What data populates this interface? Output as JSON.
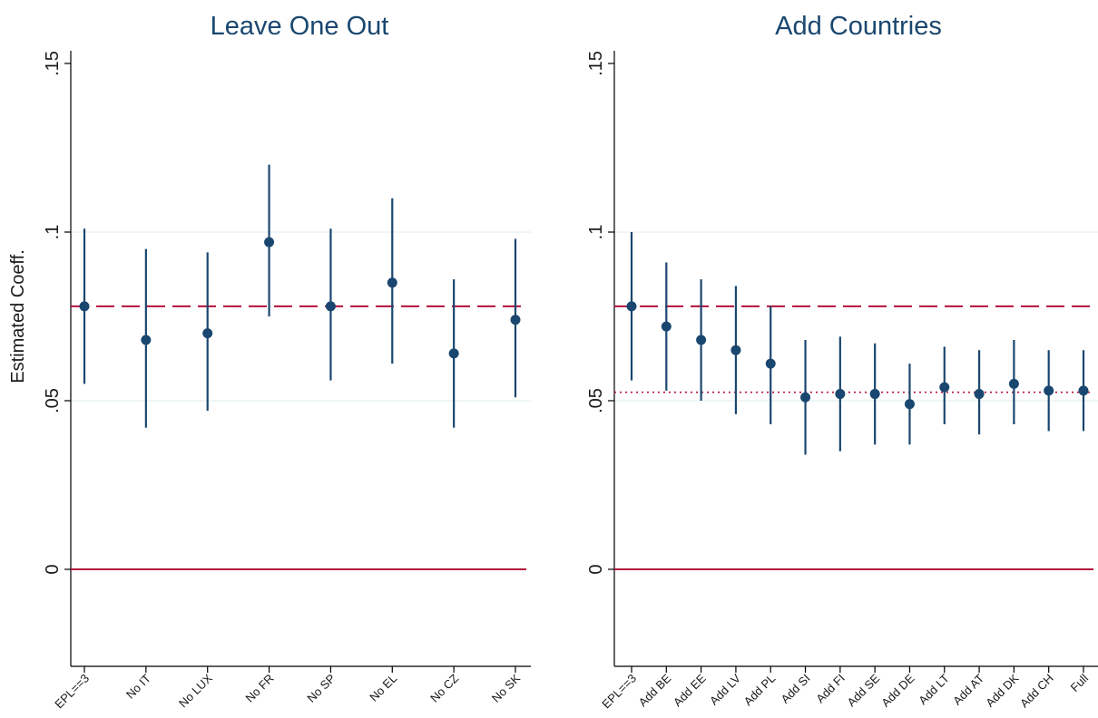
{
  "colors": {
    "point": "#1a476f",
    "ci": "#1a476f",
    "baseline": "#b4103a",
    "zero": "#b4103a",
    "grid": "#eaf2f3",
    "axis": "#000000",
    "text": "#1a1a1a"
  },
  "chart_data": [
    {
      "type": "scatter",
      "title": "Leave One Out",
      "ylabel": "Estimated Coeff.",
      "ylim": [
        -0.03,
        0.155
      ],
      "yticks": [
        0,
        0.05,
        0.1,
        0.15
      ],
      "ytick_labels": [
        "0",
        ".05",
        ".1",
        ".15"
      ],
      "grid_values": [
        0.05,
        0.1
      ],
      "categories": [
        "EPL==3",
        "No IT",
        "No LUX",
        "No FR",
        "No SP",
        "No EL",
        "No CZ",
        "No SK"
      ],
      "estimates": [
        0.078,
        0.068,
        0.07,
        0.097,
        0.078,
        0.085,
        0.064,
        0.074
      ],
      "ci_lower": [
        0.055,
        0.042,
        0.047,
        0.075,
        0.056,
        0.061,
        0.042,
        0.051
      ],
      "ci_upper": [
        0.101,
        0.095,
        0.094,
        0.12,
        0.101,
        0.11,
        0.086,
        0.098
      ],
      "reference_lines": [
        {
          "value": 0.078,
          "style": "dashed"
        },
        {
          "value": 0,
          "style": "solid"
        }
      ]
    },
    {
      "type": "scatter",
      "title": "Add Countries",
      "ylabel": "",
      "ylim": [
        -0.03,
        0.155
      ],
      "yticks": [
        0,
        0.05,
        0.1,
        0.15
      ],
      "ytick_labels": [
        "0",
        ".05",
        ".1",
        ".15"
      ],
      "grid_values": [
        0.05,
        0.1
      ],
      "categories": [
        "EPL==3",
        "Add BE",
        "Add EE",
        "Add LV",
        "Add PL",
        "Add SI",
        "Add FI",
        "Add SE",
        "Add DE",
        "Add LT",
        "Add AT",
        "Add DK",
        "Add CH",
        "Full"
      ],
      "estimates": [
        0.078,
        0.072,
        0.068,
        0.065,
        0.061,
        0.051,
        0.052,
        0.052,
        0.049,
        0.054,
        0.052,
        0.055,
        0.053,
        0.053
      ],
      "ci_lower": [
        0.056,
        0.053,
        0.05,
        0.046,
        0.043,
        0.034,
        0.035,
        0.037,
        0.037,
        0.043,
        0.04,
        0.043,
        0.041,
        0.041
      ],
      "ci_upper": [
        0.1,
        0.091,
        0.086,
        0.084,
        0.078,
        0.068,
        0.069,
        0.067,
        0.061,
        0.066,
        0.065,
        0.068,
        0.065,
        0.065
      ],
      "reference_lines": [
        {
          "value": 0.078,
          "style": "dashed"
        },
        {
          "value": 0.0525,
          "style": "dotted"
        },
        {
          "value": 0,
          "style": "solid"
        }
      ]
    }
  ]
}
